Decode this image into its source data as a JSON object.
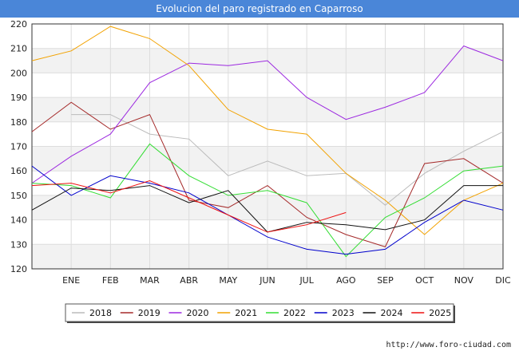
{
  "chart_data": {
    "type": "line",
    "title": "Evolucion del paro registrado en Caparroso",
    "categories": [
      "",
      "ENE",
      "FEB",
      "MAR",
      "ABR",
      "MAY",
      "JUN",
      "JUL",
      "AGO",
      "SEP",
      "OCT",
      "NOV",
      "DIC"
    ],
    "y_ticks": [
      120,
      130,
      140,
      150,
      160,
      170,
      180,
      190,
      200,
      210,
      220
    ],
    "ylim": [
      120,
      220
    ],
    "grid": true,
    "legend_position": "bottom",
    "series": [
      {
        "name": "2018",
        "color": "#bbbbbb",
        "values": [
          null,
          183,
          183,
          175,
          173,
          158,
          164,
          158,
          159,
          146,
          159,
          168,
          176
        ]
      },
      {
        "name": "2019",
        "color": "#a52a2a",
        "values": [
          176,
          188,
          177,
          183,
          148,
          145,
          154,
          141,
          134,
          129,
          163,
          165,
          155
        ]
      },
      {
        "name": "2020",
        "color": "#9c29e0",
        "values": [
          155,
          166,
          175,
          196,
          204,
          203,
          205,
          190,
          181,
          186,
          192,
          211,
          205
        ]
      },
      {
        "name": "2021",
        "color": "#f2a200",
        "values": [
          205,
          209,
          219,
          214,
          203,
          185,
          177,
          175,
          159,
          148,
          134,
          148,
          155
        ]
      },
      {
        "name": "2022",
        "color": "#33dd33",
        "values": [
          155,
          154,
          149,
          171,
          158,
          150,
          152,
          147,
          125,
          141,
          149,
          160,
          162
        ]
      },
      {
        "name": "2023",
        "color": "#0000cc",
        "values": [
          162,
          150,
          158,
          155,
          151,
          142,
          133,
          128,
          126,
          128,
          139,
          148,
          144
        ]
      },
      {
        "name": "2024",
        "color": "#111111",
        "values": [
          144,
          153,
          152,
          154,
          147,
          152,
          135,
          139,
          138,
          136,
          140,
          154,
          154
        ]
      },
      {
        "name": "2025",
        "color": "#ee1111",
        "values": [
          154,
          155,
          151,
          156,
          149,
          142,
          135,
          138,
          143,
          null,
          null,
          null,
          null
        ]
      }
    ]
  },
  "footer": {
    "url": "http://www.foro-ciudad.com"
  }
}
